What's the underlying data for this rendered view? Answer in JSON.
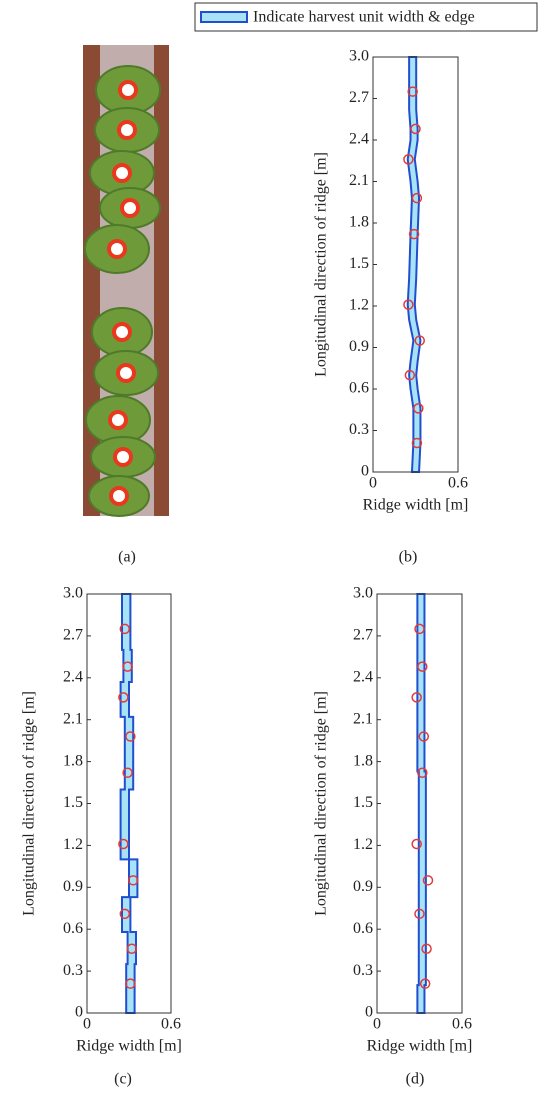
{
  "legend": "Indicate harvest unit width & edge",
  "panel_a": {
    "caption": "(a)"
  },
  "chart_data": [
    {
      "type": "band",
      "caption": "(b)",
      "xlabel": "Ridge width [m]",
      "ylabel": "Longitudinal direction of ridge [m]",
      "xlim": [
        0,
        0.6
      ],
      "xticks": [
        0,
        0.6
      ],
      "ylim": [
        0,
        3
      ],
      "yticks": [
        0,
        0.3,
        0.6,
        0.9,
        1.2,
        1.5,
        1.8,
        2.1,
        2.4,
        2.7,
        {
          "value": 3,
          "label": "3.0"
        }
      ],
      "series": [
        {
          "name": "Indicate harvest unit width & edge",
          "color": "#1f4fd0",
          "fill": "#a8e2f6",
          "width": 0.05,
          "x": [
            0.3,
            0.31,
            0.31,
            0.29,
            0.28,
            0.29,
            0.31,
            0.28,
            0.27,
            0.28,
            0.29,
            0.3,
            0.29,
            0.27,
            0.29,
            0.29,
            0.28,
            0.28,
            0.28
          ],
          "y": [
            0,
            0.21,
            0.46,
            0.6,
            0.7,
            0.8,
            0.95,
            1.1,
            1.21,
            1.4,
            1.72,
            1.98,
            2.1,
            2.26,
            2.4,
            2.48,
            2.62,
            2.75,
            3.0
          ]
        },
        {
          "type": "scatter",
          "color": "#e03a3a",
          "x": [
            0.31,
            0.32,
            0.26,
            0.33,
            0.25,
            0.29,
            0.31,
            0.25,
            0.3,
            0.28
          ],
          "y": [
            0.21,
            0.46,
            0.7,
            0.95,
            1.21,
            1.72,
            1.98,
            2.26,
            2.48,
            2.75
          ]
        }
      ]
    },
    {
      "type": "band",
      "caption": "(c)",
      "xlabel": "Ridge width [m]",
      "ylabel": "Longitudinal direction of ridge [m]",
      "xlim": [
        0,
        0.6
      ],
      "xticks": [
        0,
        0.6
      ],
      "ylim": [
        0,
        3
      ],
      "yticks": [
        0,
        0.3,
        0.6,
        0.9,
        1.2,
        1.5,
        1.8,
        2.1,
        2.4,
        2.7,
        {
          "value": 3,
          "label": "3.0"
        }
      ],
      "series": [
        {
          "name": "Indicate harvest unit width & edge",
          "color": "#1f4fd0",
          "fill": "#a8e2f6",
          "width": 0.06,
          "x": [
            0.31,
            0.31,
            0.32,
            0.32,
            0.28,
            0.28,
            0.33,
            0.33,
            0.27,
            0.27,
            0.3,
            0.3,
            0.3,
            0.3,
            0.27,
            0.27,
            0.29,
            0.29,
            0.28,
            0.28
          ],
          "y": [
            0,
            0.35,
            0.35,
            0.58,
            0.58,
            0.83,
            0.83,
            1.1,
            1.1,
            1.6,
            1.6,
            1.85,
            1.85,
            2.12,
            2.12,
            2.37,
            2.37,
            2.6,
            2.6,
            3.0
          ]
        },
        {
          "type": "scatter",
          "color": "#e03a3a",
          "x": [
            0.31,
            0.32,
            0.27,
            0.33,
            0.26,
            0.29,
            0.31,
            0.26,
            0.29,
            0.27
          ],
          "y": [
            0.21,
            0.46,
            0.71,
            0.95,
            1.21,
            1.72,
            1.98,
            2.26,
            2.48,
            2.75
          ]
        }
      ]
    },
    {
      "type": "band",
      "caption": "(d)",
      "xlabel": "Ridge width [m]",
      "ylabel": "Longitudinal direction of ridge [m]",
      "xlim": [
        0,
        0.6
      ],
      "xticks": [
        0,
        0.6
      ],
      "ylim": [
        0,
        3
      ],
      "yticks": [
        0,
        0.3,
        0.6,
        0.9,
        1.2,
        1.5,
        1.8,
        2.1,
        2.4,
        2.7,
        {
          "value": 3,
          "label": "3.0"
        }
      ],
      "series": [
        {
          "name": "Indicate harvest unit width & edge",
          "color": "#1f4fd0",
          "fill": "#a8e2f6",
          "width": 0.05,
          "x": [
            0.31,
            0.31,
            0.32,
            0.32,
            0.31,
            0.31
          ],
          "y": [
            0,
            0.2,
            0.2,
            1.73,
            1.73,
            3.0
          ]
        },
        {
          "type": "scatter",
          "color": "#e03a3a",
          "x": [
            0.34,
            0.35,
            0.3,
            0.36,
            0.28,
            0.32,
            0.33,
            0.28,
            0.32,
            0.3
          ],
          "y": [
            0.21,
            0.46,
            0.71,
            0.95,
            1.21,
            1.72,
            1.98,
            2.26,
            2.48,
            2.75
          ]
        }
      ]
    }
  ]
}
